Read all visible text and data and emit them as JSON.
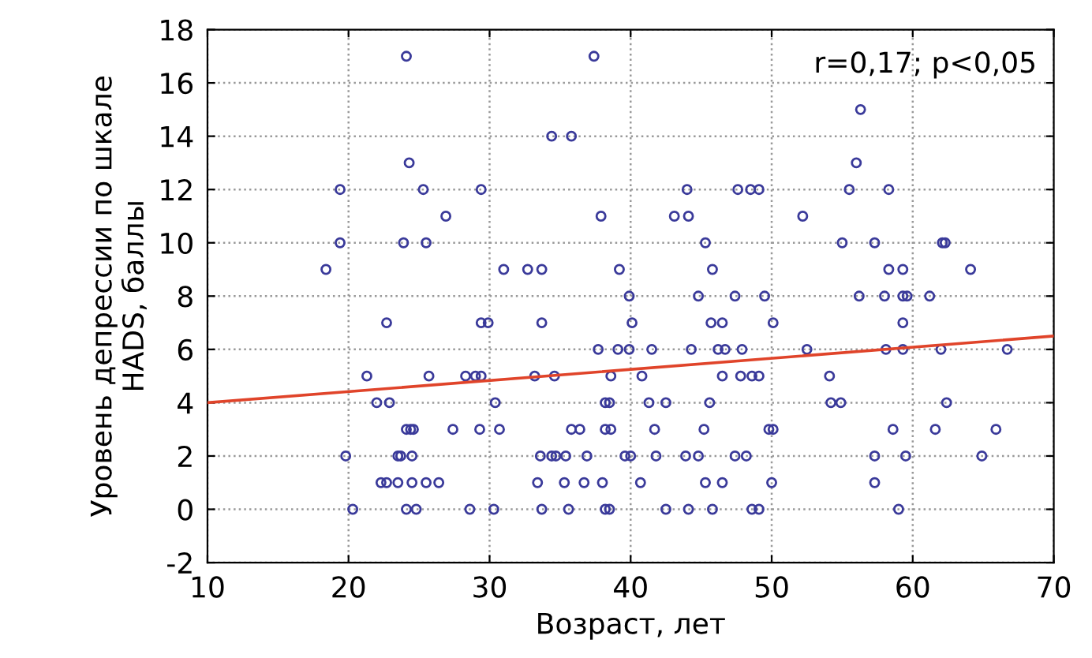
{
  "chart_data": {
    "type": "scatter",
    "xlabel": "Возраст, лет",
    "ylabel": "Уровень депрессии по шкале\nHADS, баллы",
    "xlim": [
      10,
      70
    ],
    "ylim": [
      -2,
      18
    ],
    "xticks": [
      10,
      20,
      30,
      40,
      50,
      60,
      70
    ],
    "yticks": [
      -2,
      0,
      2,
      4,
      6,
      8,
      10,
      12,
      14,
      16,
      18
    ],
    "grid": true,
    "marker": "circle",
    "legend": false,
    "annotations": [
      "r=0,17; p<0,05"
    ],
    "series": [
      {
        "color": "#3a3a9a",
        "x": [
          24.1,
          24.3,
          19.4,
          25.3,
          29.4,
          26.9,
          19.4,
          23.9,
          25.5,
          18.4,
          22.7,
          29.4,
          29.9,
          21.3,
          25.7,
          28.3,
          29.0,
          29.4,
          22.0,
          22.9,
          24.1,
          24.4,
          24.6,
          27.4,
          29.3,
          19.8,
          23.5,
          23.7,
          24.5,
          22.3,
          22.7,
          23.5,
          24.5,
          25.5,
          26.4,
          20.3,
          24.1,
          24.8,
          28.6,
          30.3,
          37.4,
          34.4,
          35.8,
          44.0,
          47.6,
          48.5,
          49.1,
          37.9,
          43.1,
          44.1,
          45.3,
          31.0,
          32.7,
          33.7,
          39.2,
          45.8,
          39.9,
          44.8,
          47.4,
          49.5,
          33.7,
          40.1,
          45.7,
          46.5,
          37.7,
          39.1,
          39.9,
          41.5,
          44.3,
          46.2,
          46.7,
          47.9,
          33.2,
          34.6,
          38.6,
          40.8,
          46.5,
          47.8,
          48.6,
          49.1,
          30.4,
          38.2,
          38.5,
          41.3,
          42.5,
          45.6,
          30.7,
          35.8,
          36.4,
          38.2,
          38.6,
          41.7,
          45.2,
          33.6,
          34.4,
          34.7,
          35.4,
          36.9,
          39.6,
          40.0,
          41.8,
          43.9,
          44.8,
          47.4,
          48.2,
          33.4,
          35.3,
          36.7,
          38.0,
          40.7,
          45.3,
          46.5,
          33.7,
          35.6,
          38.2,
          38.5,
          42.5,
          44.1,
          45.8,
          48.6,
          49.1,
          56.3,
          56.0,
          55.5,
          58.3,
          52.2,
          55.0,
          57.3,
          62.1,
          62.3,
          58.3,
          59.3,
          64.1,
          56.2,
          58.0,
          59.3,
          59.6,
          61.2,
          50.1,
          59.3,
          52.5,
          58.1,
          59.3,
          62.0,
          66.7,
          54.1,
          54.2,
          54.9,
          62.4,
          49.8,
          50.1,
          58.6,
          61.6,
          65.9,
          57.3,
          59.5,
          64.9,
          50.0,
          57.3,
          59.0
        ],
        "values": [
          17,
          13,
          12,
          12,
          12,
          11,
          10,
          10,
          10,
          9,
          7,
          7,
          7,
          5,
          5,
          5,
          5,
          5,
          4,
          4,
          3,
          3,
          3,
          3,
          3,
          2,
          2,
          2,
          2,
          1,
          1,
          1,
          1,
          1,
          1,
          0,
          0,
          0,
          0,
          0,
          17,
          14,
          14,
          12,
          12,
          12,
          12,
          11,
          11,
          11,
          10,
          9,
          9,
          9,
          9,
          9,
          8,
          8,
          8,
          8,
          7,
          7,
          7,
          7,
          6,
          6,
          6,
          6,
          6,
          6,
          6,
          6,
          5,
          5,
          5,
          5,
          5,
          5,
          5,
          5,
          4,
          4,
          4,
          4,
          4,
          4,
          3,
          3,
          3,
          3,
          3,
          3,
          3,
          2,
          2,
          2,
          2,
          2,
          2,
          2,
          2,
          2,
          2,
          2,
          2,
          1,
          1,
          1,
          1,
          1,
          1,
          1,
          0,
          0,
          0,
          0,
          0,
          0,
          0,
          0,
          0,
          15,
          13,
          12,
          12,
          11,
          10,
          10,
          10,
          10,
          9,
          9,
          9,
          8,
          8,
          8,
          8,
          8,
          7,
          7,
          6,
          6,
          6,
          6,
          6,
          5,
          4,
          4,
          4,
          3,
          3,
          3,
          3,
          3,
          2,
          2,
          2,
          1,
          1,
          0
        ]
      },
      {
        "type": "line",
        "color": "#e0442a",
        "marker": "none",
        "x": [
          10,
          70
        ],
        "values": [
          4.0,
          6.5
        ]
      }
    ]
  }
}
